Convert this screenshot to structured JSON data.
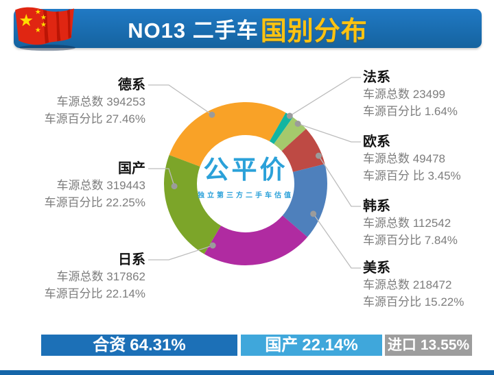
{
  "header": {
    "title_prefix": "NO13 二手车",
    "title_highlight": "国别分布",
    "bar_color": "#1A6CB5",
    "highlight_color": "#FFC311"
  },
  "center_logo": {
    "name": "公平价",
    "tagline": "独立第三方二手车估值",
    "color": "#2BA1D9"
  },
  "chart_data": {
    "type": "pie",
    "donut": true,
    "title": "NO13 二手车国别分布",
    "count_label": "车源总数",
    "percent_label": "车源百分比",
    "start_angle_deg": 290.6,
    "clockwise": true,
    "legend_position": "none",
    "slices": [
      {
        "label": "德系",
        "count": 394253,
        "percent": 27.46,
        "color": "#F9A227"
      },
      {
        "label": "法系",
        "count": 23499,
        "percent": 1.64,
        "color": "#12B5A1"
      },
      {
        "label": "欧系",
        "count": 49478,
        "percent": 3.45,
        "color": "#A5C96C"
      },
      {
        "label": "韩系",
        "count": 112542,
        "percent": 7.84,
        "color": "#BE4A44"
      },
      {
        "label": "美系",
        "count": 218472,
        "percent": 15.22,
        "color": "#4E80BC"
      },
      {
        "label": "日系",
        "count": 317862,
        "percent": 22.14,
        "color": "#B02BA1"
      },
      {
        "label": "国产",
        "count": 319443,
        "percent": 22.25,
        "color": "#7CA529"
      }
    ]
  },
  "callouts": [
    {
      "name": "德系",
      "line1": "车源总数 394253",
      "line2": "车源百分比 27.46%",
      "side": "left"
    },
    {
      "name": "国产",
      "line1": "车源总数 319443",
      "line2": "车源百分比 22.25%",
      "side": "left"
    },
    {
      "name": "日系",
      "line1": "车源总数 317862",
      "line2": "车源百分比 22.14%",
      "side": "left"
    },
    {
      "name": "法系",
      "line1": "车源总数 23499",
      "line2": "车源百分比 1.64%",
      "side": "right"
    },
    {
      "name": "欧系",
      "line1": "车源总数 49478",
      "line2": "车源百分 比 3.45%",
      "side": "right"
    },
    {
      "name": "韩系",
      "line1": "车源总数 112542",
      "line2": "车源百分比 7.84%",
      "side": "right"
    },
    {
      "name": "美系",
      "line1": "车源总数 218472",
      "line2": "车源百分比 15.22%",
      "side": "right"
    }
  ],
  "footer": {
    "segments": [
      {
        "name": "合资",
        "value": "64.31%",
        "color": "#1C70B7"
      },
      {
        "name": "国产",
        "value": "22.14%",
        "color": "#3FA7DB"
      },
      {
        "name": "进口",
        "value": "13.55%",
        "color": "#9D9D9D"
      }
    ],
    "strip_color": "#1565A8"
  }
}
